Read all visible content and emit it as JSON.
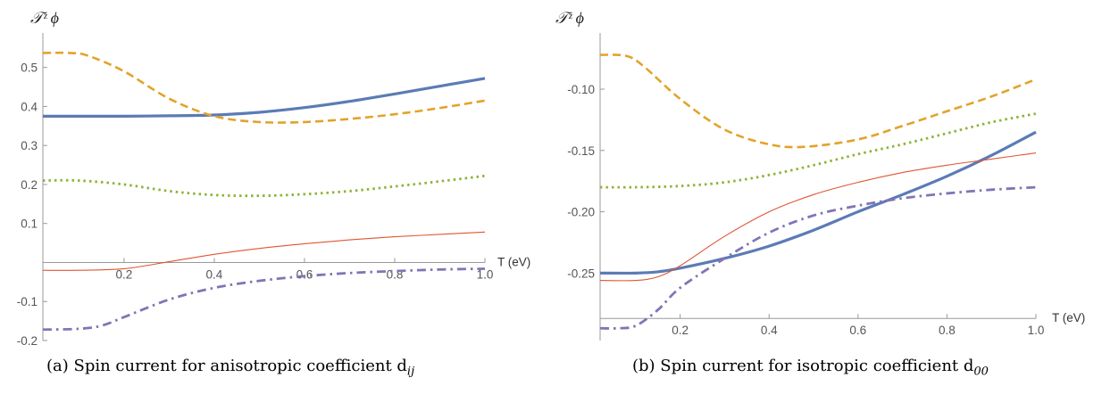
{
  "chart_data": [
    {
      "type": "line",
      "ylabel": "𝒯ᶻ ϕ",
      "xlabel": "T (eV)",
      "caption": "(a) Spin current for anisotropic coefficient d",
      "caption_sub": "ij",
      "xlim": [
        0.02,
        1.0
      ],
      "ylim": [
        -0.2,
        0.57
      ],
      "x_ticks": [
        "0.2",
        "0.4",
        "0.6",
        "0.8",
        "1.0"
      ],
      "x_tick_values": [
        0.2,
        0.4,
        0.6,
        0.8,
        1.0
      ],
      "y_ticks": [
        "-0.2",
        "-0.1",
        "0.1",
        "0.2",
        "0.3",
        "0.4",
        "0.5"
      ],
      "y_tick_values": [
        -0.2,
        -0.1,
        0.1,
        0.2,
        0.3,
        0.4,
        0.5
      ],
      "x_axis_at": 0,
      "series": [
        {
          "style": "solid-thick",
          "color": "#5b7bb5",
          "x": [
            0.02,
            0.1,
            0.2,
            0.3,
            0.4,
            0.5,
            0.6,
            0.7,
            0.8,
            0.9,
            1.0
          ],
          "y": [
            0.375,
            0.375,
            0.375,
            0.376,
            0.378,
            0.385,
            0.397,
            0.413,
            0.432,
            0.452,
            0.472
          ]
        },
        {
          "style": "dashed",
          "color": "#e2a32a",
          "x": [
            0.02,
            0.08,
            0.12,
            0.2,
            0.3,
            0.4,
            0.5,
            0.6,
            0.7,
            0.8,
            0.9,
            1.0
          ],
          "y": [
            0.537,
            0.537,
            0.53,
            0.49,
            0.42,
            0.375,
            0.36,
            0.36,
            0.368,
            0.38,
            0.396,
            0.415
          ]
        },
        {
          "style": "dotted",
          "color": "#8fb338",
          "x": [
            0.02,
            0.1,
            0.2,
            0.3,
            0.4,
            0.5,
            0.6,
            0.7,
            0.8,
            0.9,
            1.0
          ],
          "y": [
            0.21,
            0.21,
            0.2,
            0.183,
            0.173,
            0.171,
            0.175,
            0.183,
            0.195,
            0.208,
            0.222
          ]
        },
        {
          "style": "solid-thin",
          "color": "#e05530",
          "x": [
            0.02,
            0.1,
            0.2,
            0.3,
            0.4,
            0.5,
            0.6,
            0.7,
            0.8,
            0.9,
            1.0
          ],
          "y": [
            -0.02,
            -0.02,
            -0.016,
            0.002,
            0.021,
            0.036,
            0.048,
            0.058,
            0.066,
            0.072,
            0.078
          ]
        },
        {
          "style": "dashdot",
          "color": "#8274b5",
          "x": [
            0.02,
            0.1,
            0.15,
            0.2,
            0.3,
            0.4,
            0.5,
            0.6,
            0.7,
            0.8,
            0.9,
            1.0
          ],
          "y": [
            -0.172,
            -0.17,
            -0.162,
            -0.14,
            -0.095,
            -0.065,
            -0.047,
            -0.035,
            -0.027,
            -0.022,
            -0.018,
            -0.016
          ]
        }
      ]
    },
    {
      "type": "line",
      "ylabel": "𝒯ᶻ ϕ",
      "xlabel": "T (eV)",
      "caption": "(b) Spin current for isotropic coefficient d",
      "caption_sub": "00",
      "xlim": [
        0.02,
        1.0
      ],
      "ylim": [
        -0.305,
        -0.06
      ],
      "x_ticks": [
        "0.2",
        "0.4",
        "0.6",
        "0.8",
        "1.0"
      ],
      "x_tick_values": [
        0.2,
        0.4,
        0.6,
        0.8,
        1.0
      ],
      "y_ticks": [
        "-0.10",
        "-0.15",
        "-0.20",
        "-0.25"
      ],
      "y_tick_values": [
        -0.1,
        -0.15,
        -0.2,
        -0.25
      ],
      "x_axis_at": -0.287,
      "series": [
        {
          "style": "solid-thick",
          "color": "#5b7bb5",
          "x": [
            0.02,
            0.1,
            0.15,
            0.2,
            0.3,
            0.4,
            0.5,
            0.6,
            0.7,
            0.8,
            0.9,
            1.0
          ],
          "y": [
            -0.25,
            -0.25,
            -0.249,
            -0.246,
            -0.238,
            -0.228,
            -0.215,
            -0.2,
            -0.186,
            -0.171,
            -0.154,
            -0.135
          ]
        },
        {
          "style": "dashed",
          "color": "#e2a32a",
          "x": [
            0.02,
            0.08,
            0.12,
            0.2,
            0.3,
            0.4,
            0.48,
            0.6,
            0.7,
            0.8,
            0.9,
            1.0
          ],
          "y": [
            -0.072,
            -0.073,
            -0.082,
            -0.108,
            -0.133,
            -0.145,
            -0.147,
            -0.141,
            -0.13,
            -0.118,
            -0.106,
            -0.092
          ]
        },
        {
          "style": "dotted",
          "color": "#8fb338",
          "x": [
            0.02,
            0.1,
            0.2,
            0.3,
            0.4,
            0.5,
            0.6,
            0.7,
            0.8,
            0.9,
            1.0
          ],
          "y": [
            -0.18,
            -0.18,
            -0.179,
            -0.176,
            -0.17,
            -0.162,
            -0.153,
            -0.145,
            -0.136,
            -0.127,
            -0.12
          ]
        },
        {
          "style": "solid-thin",
          "color": "#e05530",
          "x": [
            0.02,
            0.1,
            0.15,
            0.2,
            0.3,
            0.4,
            0.5,
            0.6,
            0.7,
            0.8,
            0.9,
            1.0
          ],
          "y": [
            -0.256,
            -0.256,
            -0.253,
            -0.244,
            -0.22,
            -0.2,
            -0.186,
            -0.176,
            -0.168,
            -0.162,
            -0.157,
            -0.152
          ]
        },
        {
          "style": "dashdot",
          "color": "#8274b5",
          "x": [
            0.02,
            0.06,
            0.1,
            0.15,
            0.2,
            0.3,
            0.4,
            0.5,
            0.6,
            0.7,
            0.8,
            0.9,
            1.0
          ],
          "y": [
            -0.295,
            -0.295,
            -0.293,
            -0.28,
            -0.262,
            -0.238,
            -0.217,
            -0.203,
            -0.195,
            -0.189,
            -0.185,
            -0.182,
            -0.18
          ]
        }
      ]
    }
  ]
}
